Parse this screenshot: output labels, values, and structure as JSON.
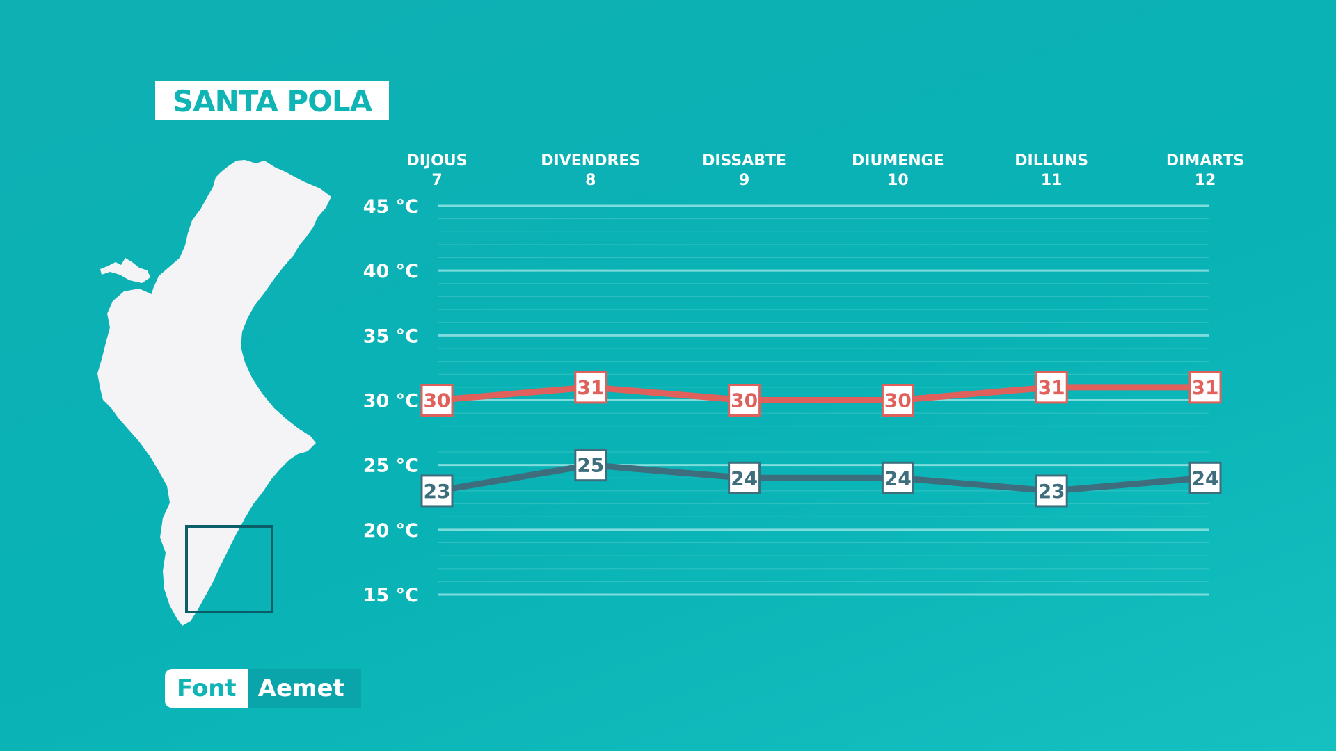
{
  "location": "SANTA POLA",
  "source": {
    "label": "Font",
    "value": "Aemet"
  },
  "colors": {
    "background": "#0fb2b5",
    "max_series": "#e0605c",
    "min_series": "#3e6e7e",
    "gridline": "#7fdcdc",
    "highlight_box": "#0b5d68"
  },
  "icons": {
    "map": "valencian-community-map"
  },
  "chart_data": {
    "type": "line",
    "x": [
      {
        "day": "DIJOUS",
        "date": "7"
      },
      {
        "day": "DIVENDRES",
        "date": "8"
      },
      {
        "day": "DISSABTE",
        "date": "9"
      },
      {
        "day": "DIUMENGE",
        "date": "10"
      },
      {
        "day": "DILLUNS",
        "date": "11"
      },
      {
        "day": "DIMARTS",
        "date": "12"
      }
    ],
    "yticks": [
      "45 °C",
      "40 °C",
      "35 °C",
      "30 °C",
      "25 °C",
      "20 °C",
      "15 °C"
    ],
    "ylim": [
      15,
      45
    ],
    "grid": true,
    "series": [
      {
        "key": "max",
        "values": [
          30,
          31,
          30,
          30,
          31,
          31
        ]
      },
      {
        "key": "min",
        "values": [
          23,
          25,
          24,
          24,
          23,
          24
        ]
      }
    ]
  }
}
